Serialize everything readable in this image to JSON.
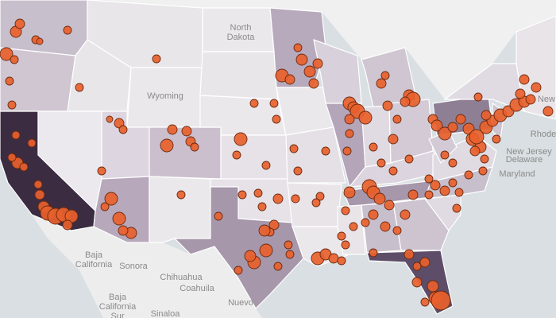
{
  "map": {
    "labels": [
      {
        "lines": [
          "North",
          "Dakota"
        ]
      },
      {
        "lines": [
          "Wyoming"
        ]
      },
      {
        "lines": [
          "Baja",
          "California"
        ]
      },
      {
        "lines": [
          "Sonora"
        ]
      },
      {
        "lines": [
          "Chihuahua"
        ]
      },
      {
        "lines": [
          "Coahuila"
        ]
      },
      {
        "lines": [
          "Nuevo"
        ]
      },
      {
        "lines": [
          "Baja",
          "California",
          "Sur"
        ]
      },
      {
        "lines": [
          "Sinaloa"
        ]
      },
      {
        "lines": [
          "New"
        ]
      },
      {
        "lines": [
          "Rhode"
        ]
      },
      {
        "lines": [
          "New Jersey"
        ]
      },
      {
        "lines": [
          "Delaware"
        ]
      },
      {
        "lines": [
          "Maryland"
        ]
      }
    ]
  }
}
